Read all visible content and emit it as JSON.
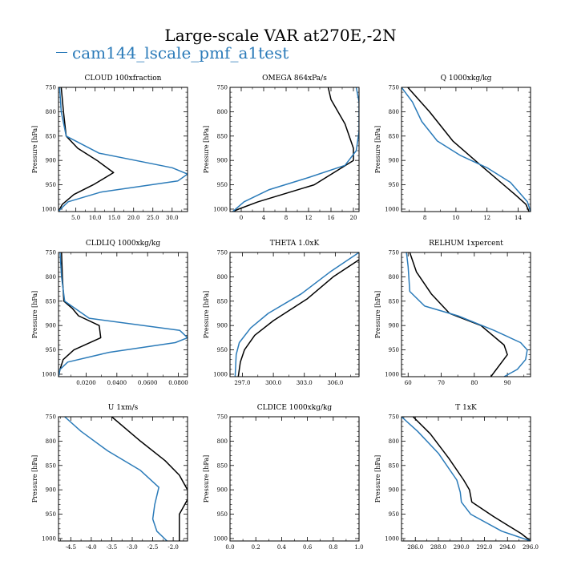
{
  "figure": {
    "title": "Large-scale VAR at270E,-2N",
    "legend_label": "cam144_lscale_pmf_a1test",
    "colors": {
      "model": "#2b7bb9",
      "reference": "#000000"
    }
  },
  "chart_data": [
    {
      "type": "line",
      "title": "CLOUD  100xfraction",
      "ylabel": "Pressure [hPa]",
      "ylim": [
        1005,
        750
      ],
      "yticks": [
        750,
        800,
        850,
        900,
        950,
        1000
      ],
      "xlim": [
        0.5,
        34
      ],
      "xticks": [
        5.0,
        10.0,
        15.0,
        20.0,
        25.0,
        30.0
      ],
      "xtick_labels": [
        "5.0",
        "10.0",
        "15.0",
        "20.0",
        "25.0",
        "30.0"
      ],
      "series": [
        {
          "name": "reference",
          "color": "#000000",
          "x": [
            1.2,
            1.8,
            2.5,
            5.5,
            10.5,
            14.8,
            9.5,
            4.5,
            1.5,
            0.8,
            0.5
          ],
          "y": [
            750,
            800,
            850,
            875,
            900,
            925,
            950,
            970,
            990,
            1000,
            1005
          ]
        },
        {
          "name": "model",
          "color": "#2b7bb9",
          "x": [
            0.8,
            1.2,
            2.5,
            11.0,
            30.0,
            34.0,
            31.5,
            11.5,
            3.0,
            1.0,
            0.5
          ],
          "y": [
            750,
            800,
            850,
            885,
            915,
            928,
            942,
            965,
            985,
            1000,
            1005
          ]
        }
      ]
    },
    {
      "type": "line",
      "title": "OMEGA  864xPa/s",
      "ylabel": "Pressure [hPa]",
      "ylim": [
        1005,
        750
      ],
      "yticks": [
        750,
        800,
        850,
        900,
        950,
        1000
      ],
      "xlim": [
        -2,
        21
      ],
      "xticks": [
        0,
        4,
        8,
        12,
        16,
        20
      ],
      "xtick_labels": [
        "0",
        "4",
        "8",
        "12",
        "16",
        "20"
      ],
      "series": [
        {
          "name": "reference",
          "color": "#000000",
          "x": [
            15.5,
            16.0,
            18.5,
            20.0,
            20.0,
            13.0,
            3.0,
            -0.5,
            -1.5
          ],
          "y": [
            750,
            775,
            825,
            875,
            900,
            950,
            985,
            1000,
            1005
          ]
        },
        {
          "name": "model",
          "color": "#2b7bb9",
          "x": [
            20.5,
            21.0,
            21.0,
            20.5,
            18.5,
            12.0,
            5.0,
            0.5,
            -1.5
          ],
          "y": [
            750,
            780,
            840,
            880,
            910,
            935,
            960,
            985,
            1005
          ]
        }
      ]
    },
    {
      "type": "line",
      "title": "Q  1000xkg/kg",
      "ylabel": "Pressure [hPa]",
      "ylim": [
        1005,
        750
      ],
      "yticks": [
        750,
        800,
        850,
        900,
        950,
        1000
      ],
      "xlim": [
        6.5,
        14.8
      ],
      "xticks": [
        8,
        10,
        12,
        14
      ],
      "xtick_labels": [
        "8",
        "10",
        "12",
        "14"
      ],
      "series": [
        {
          "name": "reference",
          "color": "#000000",
          "x": [
            6.9,
            8.3,
            9.8,
            11.6,
            13.8,
            14.5,
            14.7
          ],
          "y": [
            750,
            800,
            860,
            910,
            970,
            990,
            1005
          ]
        },
        {
          "name": "model",
          "color": "#2b7bb9",
          "x": [
            6.5,
            7.2,
            7.8,
            8.8,
            10.3,
            12.0,
            13.5,
            14.6,
            14.8
          ],
          "y": [
            750,
            780,
            820,
            860,
            890,
            915,
            945,
            985,
            1005
          ]
        }
      ]
    },
    {
      "type": "line",
      "title": "CLDLIQ  1000xkg/kg",
      "ylabel": "Pressure [hPa]",
      "ylim": [
        1005,
        750
      ],
      "yticks": [
        750,
        800,
        850,
        900,
        950,
        1000
      ],
      "xlim": [
        0.002,
        0.086
      ],
      "xticks": [
        0.02,
        0.04,
        0.06,
        0.08
      ],
      "xtick_labels": [
        "0.0200",
        "0.0400",
        "0.0600",
        "0.0800"
      ],
      "series": [
        {
          "name": "reference",
          "color": "#000000",
          "x": [
            0.004,
            0.0045,
            0.0055,
            0.011,
            0.015,
            0.0285,
            0.0295,
            0.012,
            0.005,
            0.003,
            0.002
          ],
          "y": [
            750,
            800,
            850,
            865,
            880,
            900,
            925,
            950,
            970,
            990,
            1005
          ]
        },
        {
          "name": "model",
          "color": "#2b7bb9",
          "x": [
            0.003,
            0.004,
            0.006,
            0.022,
            0.081,
            0.086,
            0.078,
            0.035,
            0.008,
            0.003,
            0.002
          ],
          "y": [
            750,
            800,
            850,
            885,
            910,
            925,
            935,
            955,
            975,
            990,
            1005
          ]
        }
      ]
    },
    {
      "type": "line",
      "title": "THETA  1.0xK",
      "ylabel": "Pressure [hPa]",
      "ylim": [
        1005,
        750
      ],
      "yticks": [
        750,
        800,
        850,
        900,
        950,
        1000
      ],
      "xlim": [
        295.8,
        308.3
      ],
      "xticks": [
        297.0,
        300.0,
        303.0,
        306.0
      ],
      "xtick_labels": [
        "297.0",
        "300.0",
        "303.0",
        "306.0"
      ],
      "series": [
        {
          "name": "reference",
          "color": "#000000",
          "x": [
            308.3,
            305.8,
            303.3,
            300.0,
            298.2,
            297.2,
            296.8,
            296.6
          ],
          "y": [
            765,
            800,
            845,
            890,
            920,
            950,
            975,
            1005
          ]
        },
        {
          "name": "model",
          "color": "#2b7bb9",
          "x": [
            308.3,
            305.5,
            302.7,
            299.5,
            297.8,
            296.7,
            296.4,
            296.3
          ],
          "y": [
            750,
            790,
            835,
            875,
            905,
            935,
            960,
            1005
          ]
        }
      ]
    },
    {
      "type": "line",
      "title": "RELHUM  1xpercent",
      "ylabel": "Pressure [hPa]",
      "ylim": [
        1005,
        750
      ],
      "yticks": [
        750,
        800,
        850,
        900,
        950,
        1000
      ],
      "xlim": [
        58,
        97
      ],
      "xticks": [
        60,
        70,
        80,
        90
      ],
      "xtick_labels": [
        "60",
        "70",
        "80",
        "90"
      ],
      "series": [
        {
          "name": "reference",
          "color": "#000000",
          "x": [
            60.5,
            62.5,
            67.0,
            72.5,
            82.0,
            89.0,
            90.0,
            85.0
          ],
          "y": [
            750,
            790,
            835,
            875,
            900,
            940,
            960,
            1005
          ]
        },
        {
          "name": "model",
          "color": "#2b7bb9",
          "x": [
            59.5,
            60.0,
            60.5,
            65.0,
            75.0,
            86.0,
            94.0,
            96.0,
            95.5,
            93.0,
            89.0
          ],
          "y": [
            750,
            780,
            830,
            860,
            880,
            910,
            935,
            950,
            970,
            990,
            1005
          ]
        }
      ]
    },
    {
      "type": "line",
      "title": "U  1xm/s",
      "ylabel": "Pressure [hPa]",
      "ylim": [
        1005,
        750
      ],
      "yticks": [
        750,
        800,
        850,
        900,
        950,
        1000
      ],
      "xlim": [
        -4.8,
        -1.65
      ],
      "xticks": [
        -4.5,
        -4.0,
        -3.5,
        -3.0,
        -2.5,
        -2.0
      ],
      "xtick_labels": [
        "-4.5",
        "-4.0",
        "-3.5",
        "-3.0",
        "-2.5",
        "-2.0"
      ],
      "series": [
        {
          "name": "reference",
          "color": "#000000",
          "x": [
            -3.5,
            -2.8,
            -2.2,
            -1.85,
            -1.65,
            -1.65,
            -1.85,
            -1.85
          ],
          "y": [
            750,
            800,
            840,
            870,
            900,
            920,
            950,
            1005
          ]
        },
        {
          "name": "model",
          "color": "#2b7bb9",
          "x": [
            -4.65,
            -4.25,
            -3.6,
            -2.8,
            -2.35,
            -2.45,
            -2.5,
            -2.4,
            -2.15
          ],
          "y": [
            750,
            780,
            820,
            860,
            895,
            930,
            960,
            985,
            1005
          ]
        }
      ]
    },
    {
      "type": "line",
      "title": "CLDICE  1000xkg/kg",
      "ylabel": "Pressure [hPa]",
      "ylim": [
        1005,
        750
      ],
      "yticks": [
        750,
        800,
        850,
        900,
        950,
        1000
      ],
      "xlim": [
        0.0,
        1.0
      ],
      "xticks": [
        0.0,
        0.2,
        0.4,
        0.6,
        0.8,
        1.0
      ],
      "xtick_labels": [
        "0.0",
        "0.2",
        "0.4",
        "0.6",
        "0.8",
        "1.0"
      ],
      "series": []
    },
    {
      "type": "line",
      "title": "T  1xK",
      "ylabel": "Pressure [hPa]",
      "ylim": [
        1005,
        750
      ],
      "yticks": [
        750,
        800,
        850,
        900,
        950,
        1000
      ],
      "xlim": [
        284.8,
        296.0
      ],
      "xticks": [
        286.0,
        288.0,
        290.0,
        292.0,
        294.0,
        296.0
      ],
      "xtick_labels": [
        "286.0",
        "288.0",
        "290.0",
        "292.0",
        "294.0",
        "296.0"
      ],
      "series": [
        {
          "name": "reference",
          "color": "#000000",
          "x": [
            285.8,
            287.3,
            288.9,
            290.2,
            290.7,
            290.9,
            292.8,
            295.2,
            296.0
          ],
          "y": [
            750,
            785,
            835,
            880,
            900,
            925,
            955,
            990,
            1005
          ]
        },
        {
          "name": "model",
          "color": "#2b7bb9",
          "x": [
            284.8,
            286.2,
            288.0,
            289.6,
            289.9,
            290.0,
            290.8,
            293.5,
            296.0
          ],
          "y": [
            750,
            780,
            825,
            880,
            905,
            925,
            950,
            985,
            1005
          ]
        }
      ]
    }
  ]
}
